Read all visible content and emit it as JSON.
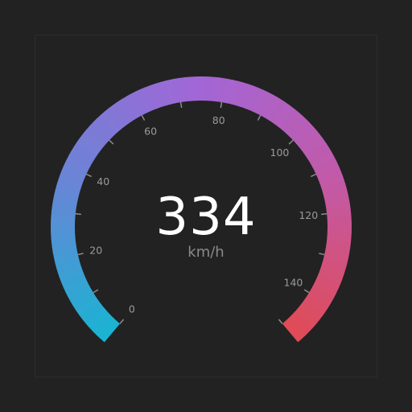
{
  "gauge": {
    "value": "334",
    "unit": "km/h",
    "min": 0,
    "max": 150,
    "start_angle_deg": -140,
    "end_angle_deg": 140,
    "labels": [
      "0",
      "20",
      "40",
      "60",
      "80",
      "100",
      "120",
      "140"
    ],
    "label_values": [
      0,
      20,
      40,
      60,
      80,
      100,
      120,
      140
    ],
    "tick_step": 10,
    "gradient_colors": [
      "#19b4d2",
      "#6a84d6",
      "#a366d6",
      "#c25aa8",
      "#e04b55"
    ]
  }
}
